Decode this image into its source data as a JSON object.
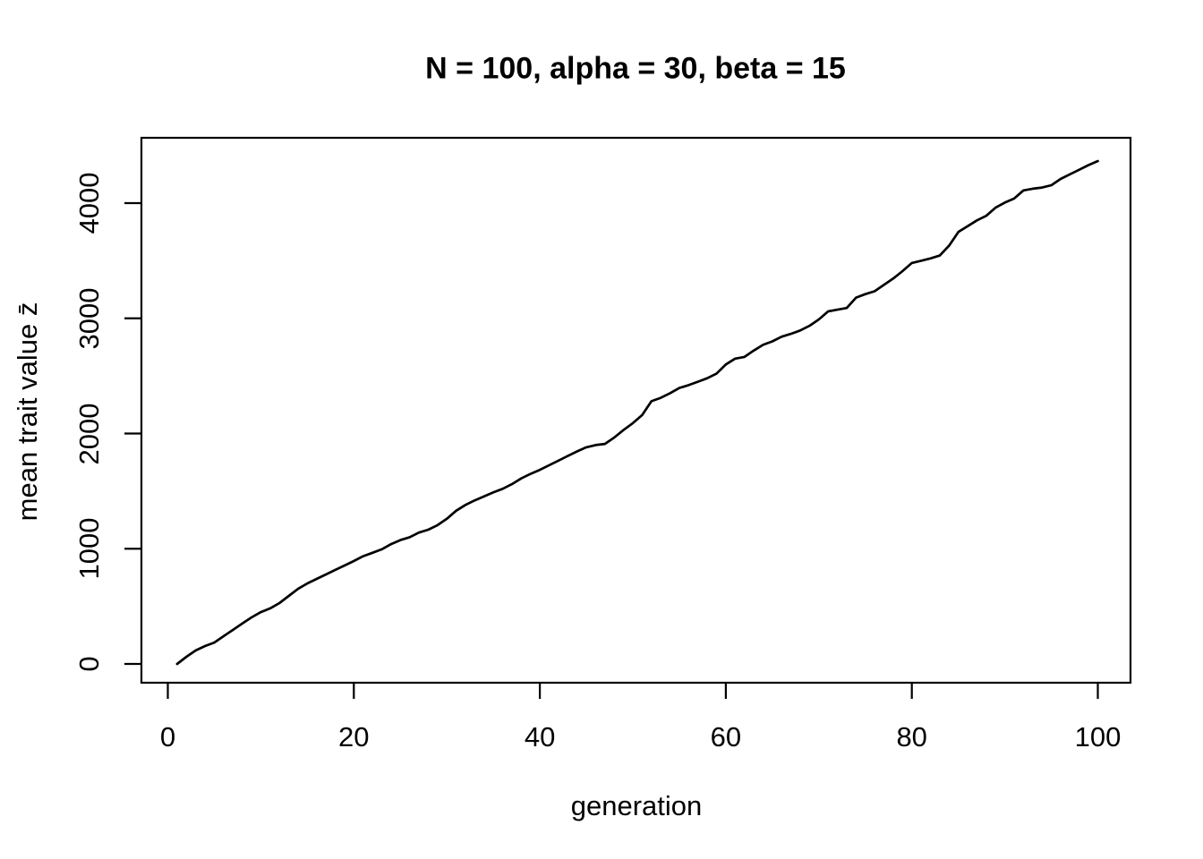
{
  "page": {
    "background": "#ffffff",
    "foreground": "#000000"
  },
  "chart_data": {
    "type": "line",
    "title": "N = 100, alpha = 30, beta = 15",
    "xlabel": "generation",
    "ylabel": "mean trait value z̄",
    "x_ticks": [
      0,
      20,
      40,
      60,
      80,
      100
    ],
    "y_ticks": [
      0,
      1000,
      2000,
      3000,
      4000
    ],
    "xlim": [
      -3,
      104
    ],
    "ylim": [
      -170,
      4560
    ],
    "grid": false,
    "frame_box": true,
    "line_color": "#000000",
    "axis_color": "#000000",
    "series": [
      {
        "name": "mean trait value",
        "x_start": 1,
        "x_step": 1,
        "values": [
          0,
          62,
          117,
          155,
          186,
          241,
          295,
          350,
          404,
          450,
          482,
          528,
          590,
          652,
          699,
          738,
          777,
          816,
          854,
          893,
          935,
          965,
          995,
          1040,
          1075,
          1100,
          1140,
          1165,
          1205,
          1260,
          1330,
          1380,
          1420,
          1455,
          1490,
          1520,
          1560,
          1610,
          1650,
          1685,
          1725,
          1765,
          1805,
          1845,
          1880,
          1900,
          1910,
          1965,
          2030,
          2090,
          2160,
          2280,
          2310,
          2350,
          2395,
          2420,
          2450,
          2480,
          2520,
          2600,
          2650,
          2665,
          2720,
          2770,
          2800,
          2840,
          2865,
          2895,
          2935,
          2990,
          3060,
          3075,
          3090,
          3180,
          3210,
          3235,
          3290,
          3345,
          3410,
          3480,
          3500,
          3520,
          3545,
          3630,
          3750,
          3800,
          3850,
          3890,
          3960,
          4005,
          4040,
          4110,
          4125,
          4135,
          4155,
          4210,
          4250,
          4290,
          4330,
          4365
        ]
      }
    ]
  }
}
